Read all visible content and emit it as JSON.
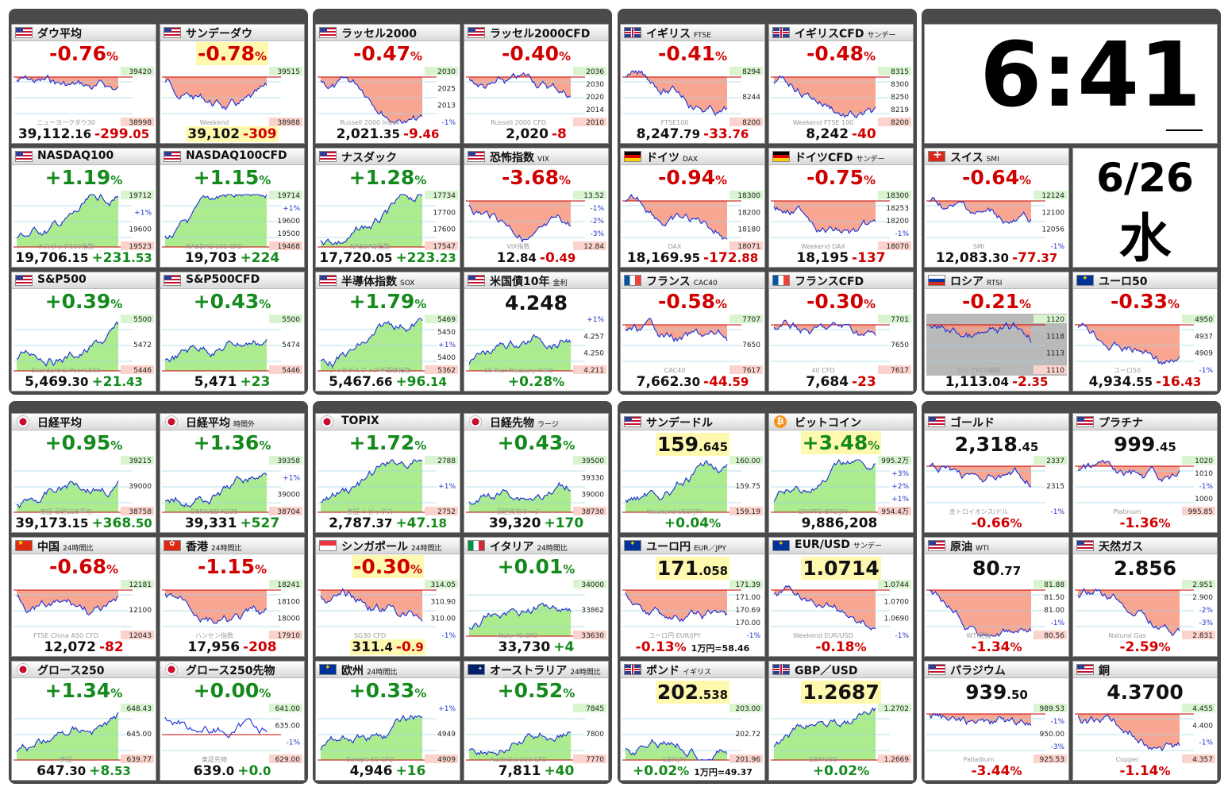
{
  "clock": {
    "time": "6:41",
    "date": "6/26",
    "weekday": "水"
  },
  "colors": {
    "up": "#138a1b",
    "down": "#d00000",
    "area_up": "#9de87a",
    "area_down": "#f7967f",
    "line": "#1a2fd8",
    "highlight": "#fff9b0"
  },
  "groups": [
    {
      "name": "us",
      "tiles": [
        {
          "name": "ダウ平均",
          "sub": "",
          "flag": "us-flag-icon",
          "pct": "-0.76",
          "bottom_num": "39,112",
          "bottom_dec": ".16",
          "bottom_chg": "-299",
          "bottom_chg_dec": ".05",
          "dir": "down",
          "labels": [
            "39420",
            "38998"
          ],
          "watermark": "ニューヨークダウ30"
        },
        {
          "name": "サンデーダウ",
          "sub": "",
          "flag": "us-flag-icon",
          "pct": "-0.78",
          "pct_hl": true,
          "bottom_num": "39,102",
          "bottom_chg": "-309",
          "bottom_hl": true,
          "dir": "down",
          "labels": [
            "39515",
            "38988"
          ],
          "watermark": "Weekend"
        },
        {
          "name": "ラッセル2000",
          "sub": "",
          "flag": "us-flag-icon",
          "pct": "-0.47",
          "bottom_num": "2,021",
          "bottom_dec": ".35",
          "bottom_chg": "-9",
          "bottom_chg_dec": ".46",
          "dir": "down",
          "labels": [
            "2030",
            "2025",
            "2013",
            "-1%"
          ],
          "watermark": "Russell 2000 Index"
        },
        {
          "name": "ラッセル2000CFD",
          "sub": "",
          "flag": "us-flag-icon",
          "pct": "-0.40",
          "bottom_num": "2,020",
          "bottom_chg": "-8",
          "dir": "down",
          "labels": [
            "2036",
            "2030",
            "2020",
            "2014",
            "2010"
          ],
          "watermark": "Russell 2000 CFD"
        },
        {
          "name": "NASDAQ100",
          "sub": "",
          "flag": "us-flag-icon",
          "pct": "+1.19",
          "bottom_num": "19,706",
          "bottom_dec": ".15",
          "bottom_chg": "+231",
          "bottom_chg_dec": ".53",
          "dir": "up",
          "labels": [
            "19712",
            "+1%",
            "19600",
            "19523"
          ],
          "watermark": "ナスダック100指数"
        },
        {
          "name": "NASDAQ100CFD",
          "sub": "",
          "flag": "us-flag-icon",
          "pct": "+1.15",
          "bottom_num": "19,703",
          "bottom_chg": "+224",
          "dir": "up",
          "labels": [
            "19714",
            "+1%",
            "19600",
            "19500",
            "19468"
          ],
          "watermark": "NASDAQ 100 CFD"
        },
        {
          "name": "ナスダック",
          "sub": "",
          "flag": "us-flag-icon",
          "pct": "+1.28",
          "bottom_num": "17,720",
          "bottom_dec": ".05",
          "bottom_chg": "+223",
          "bottom_chg_dec": ".23",
          "dir": "up",
          "labels": [
            "17734",
            "17700",
            "17600",
            "17547"
          ],
          "watermark": "NASDAQ指数"
        },
        {
          "name": "恐怖指数",
          "sub": "VIX",
          "flag": "us-flag-icon",
          "pct": "-3.68",
          "bottom_num": "12",
          "bottom_dec": ".84",
          "bottom_chg": "-0",
          "bottom_chg_dec": ".49",
          "dir": "down",
          "labels": [
            "13.52",
            "-1%",
            "-2%",
            "-3%",
            "12.84"
          ],
          "watermark": "VIX指数"
        },
        {
          "name": "S&P500",
          "sub": "",
          "flag": "us-flag-icon",
          "pct": "+0.39",
          "bottom_num": "5,469",
          "bottom_dec": ".30",
          "bottom_chg": "+21",
          "bottom_chg_dec": ".43",
          "dir": "up",
          "labels": [
            "5500",
            "5472",
            "5446"
          ],
          "watermark": "Standard & Poor's500"
        },
        {
          "name": "S&P500CFD",
          "sub": "",
          "flag": "us-flag-icon",
          "pct": "+0.43",
          "bottom_num": "5,471",
          "bottom_chg": "+23",
          "dir": "up",
          "labels": [
            "5500",
            "5474",
            "5446"
          ],
          "watermark": ""
        },
        {
          "name": "半導体指数",
          "sub": "SOX",
          "flag": "us-flag-icon",
          "pct": "+1.79",
          "bottom_num": "5,467",
          "bottom_dec": ".66",
          "bottom_chg": "+96",
          "bottom_chg_dec": ".14",
          "dir": "up",
          "labels": [
            "5469",
            "5450",
            "+1%",
            "5400",
            "5362"
          ],
          "watermark": "フィラデルフィア半導体指数"
        },
        {
          "name": "米国債10年",
          "sub": "金利",
          "flag": "us-flag-icon",
          "price": "4.248",
          "bottom_chg": "+0.28",
          "bottom_pct": true,
          "dir": "up",
          "labels": [
            "+1%",
            "4.257",
            "4.250",
            "4.211"
          ],
          "watermark": "10-Year Treasury Yield"
        }
      ]
    },
    {
      "name": "eu",
      "tiles": [
        {
          "name": "イギリス",
          "sub": "FTSE",
          "flag": "uk-flag-icon",
          "pct": "-0.41",
          "bottom_num": "8,247",
          "bottom_dec": ".79",
          "bottom_chg": "-33",
          "bottom_chg_dec": ".76",
          "dir": "down",
          "labels": [
            "8294",
            "8244",
            "8200"
          ],
          "watermark": "FTSE100"
        },
        {
          "name": "イギリスCFD",
          "sub": "サンデー",
          "flag": "uk-flag-icon",
          "pct": "-0.48",
          "bottom_num": "8,242",
          "bottom_chg": "-40",
          "dir": "down",
          "labels": [
            "8315",
            "8300",
            "8250",
            "8219",
            "8200"
          ],
          "watermark": "Weekend FTSE 100"
        },
        {
          "name": "ドイツ",
          "sub": "DAX",
          "flag": "de-flag-icon",
          "pct": "-0.94",
          "bottom_num": "18,169",
          "bottom_dec": ".95",
          "bottom_chg": "-172",
          "bottom_chg_dec": ".88",
          "dir": "down",
          "labels": [
            "18300",
            "18200",
            "18180",
            "18071"
          ],
          "watermark": "DAX"
        },
        {
          "name": "ドイツCFD",
          "sub": "サンデー",
          "flag": "de-flag-icon",
          "pct": "-0.75",
          "bottom_num": "18,195",
          "bottom_chg": "-137",
          "dir": "down",
          "labels": [
            "18300",
            "18253",
            "18200",
            "-1%",
            "18070"
          ],
          "watermark": "Weekend DAX"
        },
        {
          "name": "フランス",
          "sub": "CAC40",
          "flag": "fr-flag-icon",
          "pct": "-0.58",
          "bottom_num": "7,662",
          "bottom_dec": ".30",
          "bottom_chg": "-44",
          "bottom_chg_dec": ".59",
          "dir": "down",
          "labels": [
            "7707",
            "7650",
            "7617"
          ],
          "watermark": "CAC40"
        },
        {
          "name": "フランスCFD",
          "sub": "",
          "flag": "fr-flag-icon",
          "pct": "-0.30",
          "bottom_num": "7,684",
          "bottom_chg": "-23",
          "dir": "down",
          "labels": [
            "7701",
            "7650",
            "7617"
          ],
          "watermark": "40 CFD"
        }
      ]
    },
    {
      "name": "other",
      "tiles": [
        {
          "name": "スイス",
          "sub": "SMI",
          "flag": "ch-flag-icon",
          "pct": "-0.64",
          "bottom_num": "12,083",
          "bottom_dec": ".30",
          "bottom_chg": "-77",
          "bottom_chg_dec": ".37",
          "dir": "down",
          "labels": [
            "12124",
            "12100",
            "12056",
            "-1%"
          ],
          "watermark": "SMI"
        },
        {
          "name": "ロシア",
          "sub": "RTSI",
          "flag": "ru-flag-icon",
          "pct": "-0.21",
          "bottom_num": "1,113",
          "bottom_dec": ".04",
          "bottom_chg": "-2",
          "bottom_chg_dec": ".35",
          "dir": "down",
          "grey": true,
          "labels": [
            "1120",
            "1118",
            "1113",
            "1110"
          ],
          "watermark": "ロシアRTS指数"
        },
        {
          "name": "ユーロ50",
          "sub": "",
          "flag": "eu-flag-icon",
          "pct": "-0.33",
          "bottom_num": "4,934",
          "bottom_dec": ".55",
          "bottom_chg": "-16",
          "bottom_chg_dec": ".43",
          "dir": "down",
          "labels": [
            "4950",
            "4937",
            "4909",
            "-1%"
          ],
          "watermark": "ユーロ50"
        }
      ]
    },
    {
      "name": "asia",
      "tiles": [
        {
          "name": "日経平均",
          "sub": "",
          "flag": "jp-flag-icon",
          "pct": "+0.95",
          "bottom_num": "39,173",
          "bottom_dec": ".15",
          "bottom_chg": "+368",
          "bottom_chg_dec": ".50",
          "dir": "up",
          "labels": [
            "39215",
            "39000",
            "38758"
          ],
          "watermark": "東証 日経225平均"
        },
        {
          "name": "日経平均",
          "sub": "時間外",
          "flag": "jp-flag-icon",
          "pct": "+1.36",
          "bottom_num": "39,331",
          "bottom_chg": "+527",
          "dir": "up",
          "labels": [
            "39358",
            "+1%",
            "39000",
            "38704"
          ],
          "watermark": "DERIVED N225"
        },
        {
          "name": "中国",
          "sub": "24時間比",
          "flag": "cn-flag-icon",
          "pct": "-0.68",
          "bottom_num": "12,072",
          "bottom_chg": "-82",
          "dir": "down",
          "labels": [
            "12181",
            "12100",
            "12043"
          ],
          "watermark": "FTSE China A50 CFD"
        },
        {
          "name": "香港",
          "sub": "24時間比",
          "flag": "hk-flag-icon",
          "pct": "-1.15",
          "bottom_num": "17,956",
          "bottom_chg": "-208",
          "dir": "down",
          "labels": [
            "18241",
            "18100",
            "18000",
            "17910"
          ],
          "watermark": "ハンセン指数"
        },
        {
          "name": "TOPIX",
          "sub": "",
          "flag": "jp-flag-icon",
          "pct": "+1.72",
          "bottom_num": "2,787",
          "bottom_dec": ".37",
          "bottom_chg": "+47",
          "bottom_chg_dec": ".18",
          "dir": "up",
          "labels": [
            "2788",
            "+1%",
            "2752"
          ],
          "watermark": "東証 トピックス"
        },
        {
          "name": "日経先物",
          "sub": "ラージ",
          "flag": "jp-flag-icon",
          "pct": "+0.43",
          "bottom_num": "39,320",
          "bottom_chg": "+170",
          "dir": "up",
          "labels": [
            "39500",
            "39330",
            "39000",
            "38730"
          ],
          "watermark": "日経先物ラージ"
        },
        {
          "name": "シンガポール",
          "sub": "24時間比",
          "flag": "sg-flag-icon",
          "pct": "-0.30",
          "pct_hl": true,
          "bottom_num": "311",
          "bottom_dec": ".4",
          "bottom_chg": "-0",
          "bottom_chg_dec": ".9",
          "bottom_hl": true,
          "dir": "down",
          "labels": [
            "314.05",
            "310.90",
            "310.00",
            "-1%"
          ],
          "watermark": "SG30 CFD"
        },
        {
          "name": "イタリア",
          "sub": "24時間比",
          "flag": "it-flag-icon",
          "pct": "+0.01",
          "bottom_num": "33,730",
          "bottom_chg": "+4",
          "dir": "up",
          "labels": [
            "34000",
            "33862",
            "33630"
          ],
          "watermark": "Italy 40 CFD"
        },
        {
          "name": "グロース250",
          "sub": "",
          "flag": "jp-flag-icon",
          "pct": "+1.34",
          "bottom_num": "647",
          "bottom_dec": ".30",
          "bottom_chg": "+8",
          "bottom_chg_dec": ".53",
          "dir": "up",
          "labels": [
            "648.43",
            "645.00",
            "639.77"
          ],
          "watermark": "東証"
        },
        {
          "name": "グロース250先物",
          "sub": "",
          "flag": "jp-flag-icon",
          "pct": "+0.00",
          "bottom_num": "639",
          "bottom_dec": ".0",
          "bottom_chg": "+0",
          "bottom_chg_dec": ".0",
          "dir": "flat",
          "labels": [
            "641.00",
            "635.00",
            "-1%",
            "629.00"
          ],
          "watermark": "東証先物"
        },
        {
          "name": "欧州",
          "sub": "24時間比",
          "flag": "eu-flag-icon",
          "pct": "+0.33",
          "bottom_num": "4,946",
          "bottom_chg": "+16",
          "dir": "up",
          "labels": [
            "+1%",
            "4949",
            "4909"
          ],
          "watermark": "Europe 50 CFD"
        },
        {
          "name": "オーストラリア",
          "sub": "24時間比",
          "flag": "au-flag-icon",
          "pct": "+0.52",
          "bottom_num": "7,811",
          "bottom_chg": "+40",
          "dir": "up",
          "labels": [
            "7845",
            "7800",
            "7770"
          ],
          "watermark": "Australia 200 CFD"
        }
      ]
    },
    {
      "name": "fx",
      "tiles": [
        {
          "name": "サンデードル",
          "sub": "",
          "flag": "us-flag-icon",
          "price": "159",
          "price_dec": ".645",
          "price_hl": true,
          "bottom_chg": "+0.04",
          "bottom_pct": true,
          "dir": "up",
          "labels": [
            "160.00",
            "159.75",
            "159.19"
          ],
          "watermark": "Weekend USD/JPY"
        },
        {
          "name": "ビットコイン",
          "sub": "",
          "flag": "btc-icon",
          "pct": "+3.48",
          "pct_hl": true,
          "bottom_num": "9,886,208",
          "dir": "up",
          "labels": [
            "995.2万",
            "+3%",
            "+2%",
            "+1%",
            "954.4万"
          ],
          "watermark": "CRYPTO BTC/JPY"
        },
        {
          "name": "ユーロ円",
          "sub": "EUR／JPY",
          "flag": "eu-flag-icon",
          "price": "171",
          "price_dec": ".058",
          "price_hl": true,
          "bottom_chg": "-0.13",
          "bottom_pct": true,
          "bottom_extra": "1万円=58.46",
          "dir": "down",
          "labels": [
            "171.39",
            "171.00",
            "170.69",
            "170.00",
            "-1%"
          ],
          "watermark": "ユーロ円 EUR/JPY"
        },
        {
          "name": "EUR/USD",
          "sub": "サンデー",
          "flag": "eu-flag-icon",
          "price": "1.0714",
          "price_hl": true,
          "bottom_chg": "-0.18",
          "bottom_pct": true,
          "dir": "down",
          "labels": [
            "1.0744",
            "1.0700",
            "1.0690",
            "-1%"
          ],
          "watermark": "Weekend EUR/USD"
        },
        {
          "name": "ポンド",
          "sub": "イギリス",
          "flag": "uk-flag-icon",
          "price": "202",
          "price_dec": ".538",
          "price_hl": true,
          "bottom_chg": "+0.02",
          "bottom_pct": true,
          "bottom_extra": "1万円=49.37",
          "dir": "up",
          "labels": [
            "203.00",
            "202.72",
            "201.96"
          ],
          "watermark": "GBP/JPY"
        },
        {
          "name": "GBP／USD",
          "sub": "",
          "flag": "uk-flag-icon",
          "price": "1.2687",
          "price_hl": true,
          "bottom_chg": "+0.02",
          "bottom_pct": true,
          "dir": "up",
          "labels": [
            "1.2702",
            "1.2669"
          ],
          "watermark": "GBP/USD"
        }
      ]
    },
    {
      "name": "commodities",
      "tiles": [
        {
          "name": "ゴールド",
          "sub": "",
          "flag": "us-flag-icon",
          "price": "2,318",
          "price_dec": ".45",
          "bottom_chg": "-0.66",
          "bottom_pct": true,
          "dir": "down",
          "labels": [
            "2337",
            "2315",
            "-1%"
          ],
          "watermark": "金トロイオンス/ドル"
        },
        {
          "name": "プラチナ",
          "sub": "",
          "flag": "us-flag-icon",
          "price": "999",
          "price_dec": ".45",
          "bottom_chg": "-1.36",
          "bottom_pct": true,
          "dir": "down",
          "labels": [
            "1020",
            "1010",
            "-1%",
            "1000",
            "995.85"
          ],
          "watermark": "Platinum"
        },
        {
          "name": "原油",
          "sub": "WTI",
          "flag": "us-flag-icon",
          "price": "80",
          "price_dec": ".77",
          "bottom_chg": "-1.34",
          "bottom_pct": true,
          "dir": "down",
          "labels": [
            "81.88",
            "81.50",
            "81.00",
            "-1%",
            "80.56"
          ],
          "watermark": "WTI原油"
        },
        {
          "name": "天然ガス",
          "sub": "",
          "flag": "us-flag-icon",
          "price": "2.856",
          "bottom_chg": "-2.59",
          "bottom_pct": true,
          "dir": "down",
          "labels": [
            "2.951",
            "2.900",
            "-2%",
            "-3%",
            "2.831"
          ],
          "watermark": "Natural Gas"
        },
        {
          "name": "パラジウム",
          "sub": "",
          "flag": "us-flag-icon",
          "price": "939",
          "price_dec": ".50",
          "bottom_chg": "-3.44",
          "bottom_pct": true,
          "dir": "down",
          "labels": [
            "989.53",
            "-1%",
            "950.00",
            "-3%",
            "925.53"
          ],
          "watermark": "Palladium"
        },
        {
          "name": "銅",
          "sub": "",
          "flag": "us-flag-icon",
          "price": "4.3700",
          "bottom_chg": "-1.14",
          "bottom_pct": true,
          "dir": "down",
          "labels": [
            "4.455",
            "4.400",
            "-1%",
            "4.357"
          ],
          "watermark": "Copper"
        }
      ]
    }
  ]
}
